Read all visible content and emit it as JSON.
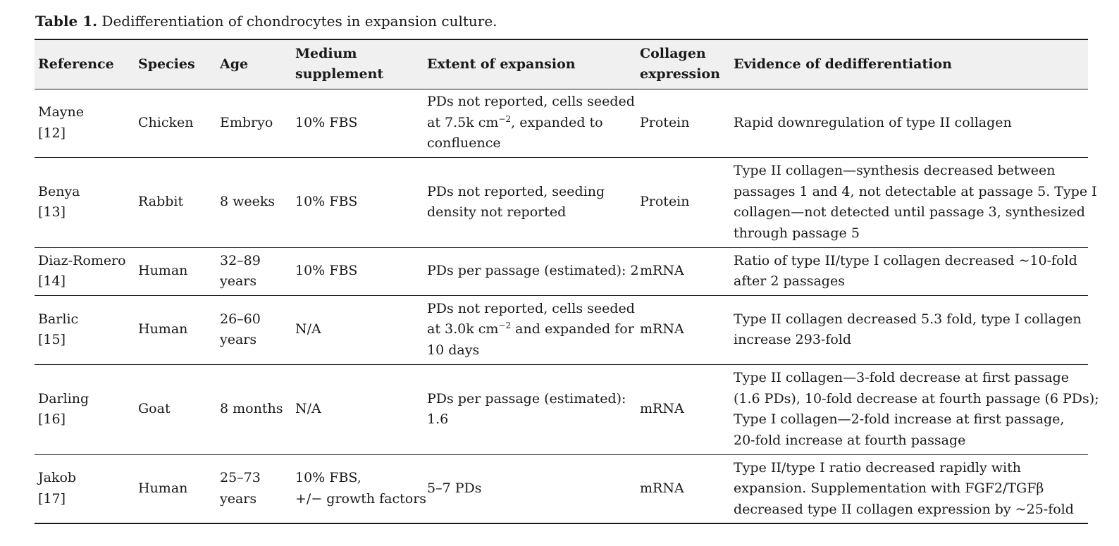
{
  "caption": {
    "label": "Table 1.",
    "text": " Dedifferentiation of chondrocytes in expansion culture."
  },
  "headers": {
    "reference": "Reference",
    "species": "Species",
    "age": "Age",
    "medium": [
      "Medium",
      "supplement"
    ],
    "expansion": "Extent of expansion",
    "collagen": [
      "Collagen",
      "expression"
    ],
    "evidence": "Evidence of dedifferentiation"
  },
  "rows": [
    {
      "reference": [
        "Mayne",
        "[12]"
      ],
      "species": "Chicken",
      "age": [
        "Embryo"
      ],
      "medium": [
        "10% FBS"
      ],
      "expansion": {
        "l1": "PDs not reported, cells seeded",
        "l2a": "at 7.5k cm",
        "l2sup": "−2",
        "l2b": ", expanded to",
        "l3": "confluence"
      },
      "collagen": "Protein",
      "evidence": [
        "Rapid downregulation of type II collagen"
      ]
    },
    {
      "reference": [
        "Benya",
        "[13]"
      ],
      "species": "Rabbit",
      "age": [
        "8 weeks"
      ],
      "medium": [
        "10% FBS"
      ],
      "expansion": [
        "PDs not reported, seeding",
        "density not reported"
      ],
      "collagen": "Protein",
      "evidence": [
        "Type II collagen—synthesis decreased between",
        "passages 1 and 4, not detectable at passage 5. Type I",
        "collagen—not detected until passage 3, synthesized",
        "through passage 5"
      ]
    },
    {
      "reference": [
        "Diaz-Romero",
        "[14]"
      ],
      "species": "Human",
      "age": [
        "32–89",
        "years"
      ],
      "medium": [
        "10% FBS"
      ],
      "expansion": [
        "PDs per passage (estimated): 2"
      ],
      "collagen": "mRNA",
      "evidence": [
        "Ratio of type II/type I collagen decreased ~10-fold",
        "after 2 passages"
      ]
    },
    {
      "reference": [
        "Barlic",
        "[15]"
      ],
      "species": "Human",
      "age": [
        "26–60",
        "years"
      ],
      "medium": [
        "N/A"
      ],
      "expansion": {
        "l1": "PDs not reported, cells seeded",
        "l2a": "at 3.0k cm",
        "l2sup": "−2",
        "l2b": " and expanded for",
        "l3": "10 days"
      },
      "collagen": "mRNA",
      "evidence": [
        "Type II collagen decreased 5.3 fold, type I collagen",
        "increase 293-fold"
      ]
    },
    {
      "reference": [
        "Darling",
        "[16]"
      ],
      "species": "Goat",
      "age": [
        "8 months"
      ],
      "medium": [
        "N/A"
      ],
      "expansion": [
        "PDs per passage (estimated):",
        "1.6"
      ],
      "collagen": "mRNA",
      "evidence": [
        "Type II collagen—3-fold decrease at first passage",
        "(1.6 PDs), 10-fold decrease at fourth passage (6 PDs);",
        "Type I collagen—2-fold increase at first passage,",
        "20-fold increase at fourth passage"
      ]
    },
    {
      "reference": [
        "Jakob",
        "[17]"
      ],
      "species": "Human",
      "age": [
        "25–73",
        "years"
      ],
      "medium": [
        "10% FBS,",
        "+/− growth factors"
      ],
      "expansion": [
        "5–7 PDs"
      ],
      "collagen": "mRNA",
      "evidence": [
        "Type II/type I ratio decreased rapidly with",
        "expansion. Supplementation with FGF2/TGFβ",
        "decreased type II collagen expression by ~25-fold"
      ]
    }
  ]
}
